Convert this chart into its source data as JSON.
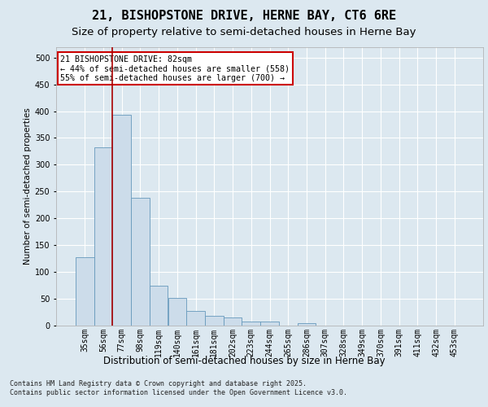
{
  "title1": "21, BISHOPSTONE DRIVE, HERNE BAY, CT6 6RE",
  "title2": "Size of property relative to semi-detached houses in Herne Bay",
  "xlabel": "Distribution of semi-detached houses by size in Herne Bay",
  "ylabel": "Number of semi-detached properties",
  "categories": [
    "35sqm",
    "56sqm",
    "77sqm",
    "98sqm",
    "119sqm",
    "140sqm",
    "161sqm",
    "181sqm",
    "202sqm",
    "223sqm",
    "244sqm",
    "265sqm",
    "286sqm",
    "307sqm",
    "328sqm",
    "349sqm",
    "370sqm",
    "391sqm",
    "411sqm",
    "432sqm",
    "453sqm"
  ],
  "values": [
    128,
    333,
    393,
    238,
    75,
    52,
    28,
    18,
    15,
    8,
    8,
    0,
    5,
    0,
    0,
    0,
    0,
    0,
    0,
    0,
    0
  ],
  "bar_color": "#ccdcea",
  "bar_edge_color": "#6699bb",
  "vline_x": 1.5,
  "vline_color": "#aa0000",
  "annotation_text": "21 BISHOPSTONE DRIVE: 82sqm\n← 44% of semi-detached houses are smaller (558)\n55% of semi-detached houses are larger (700) →",
  "annotation_box_facecolor": "#ffffff",
  "annotation_box_edgecolor": "#cc0000",
  "bg_color": "#dce8f0",
  "plot_bg_color": "#dce8f0",
  "footer": "Contains HM Land Registry data © Crown copyright and database right 2025.\nContains public sector information licensed under the Open Government Licence v3.0.",
  "ylim": [
    0,
    520
  ],
  "yticks": [
    0,
    50,
    100,
    150,
    200,
    250,
    300,
    350,
    400,
    450,
    500
  ],
  "title1_fontsize": 11,
  "title2_fontsize": 9.5,
  "xlabel_fontsize": 8.5,
  "ylabel_fontsize": 7.5,
  "grid_color": "#ffffff",
  "tick_fontsize": 7,
  "footer_fontsize": 6
}
